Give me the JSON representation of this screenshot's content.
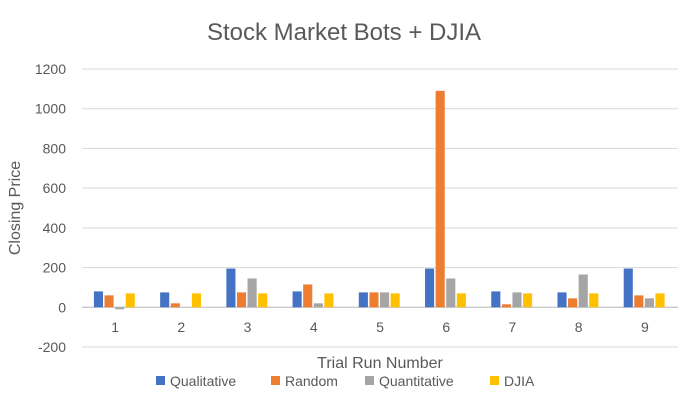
{
  "chart_data": {
    "type": "bar",
    "title": "Stock Market Bots + DJIA",
    "xlabel": "Trial Run Number",
    "ylabel": "Closing Price",
    "categories": [
      "1",
      "2",
      "3",
      "4",
      "5",
      "6",
      "7",
      "8",
      "9"
    ],
    "ylim": [
      -200,
      1200
    ],
    "yticks": [
      "-200",
      "0",
      "200",
      "400",
      "600",
      "800",
      "1000",
      "1200"
    ],
    "ytick_values": [
      -200,
      0,
      200,
      400,
      600,
      800,
      1000,
      1200
    ],
    "grid": true,
    "legend_position": "bottom",
    "series": [
      {
        "name": "Qualitative",
        "color": "#4472c4",
        "values": [
          80,
          75,
          195,
          80,
          75,
          195,
          80,
          75,
          195
        ]
      },
      {
        "name": "Random",
        "color": "#ed7d31",
        "values": [
          60,
          20,
          75,
          115,
          75,
          1090,
          15,
          45,
          60
        ]
      },
      {
        "name": "Quantitative",
        "color": "#a5a5a5",
        "values": [
          -10,
          0,
          145,
          20,
          75,
          145,
          75,
          165,
          45
        ]
      },
      {
        "name": "DJIA",
        "color": "#ffc000",
        "values": [
          70,
          70,
          70,
          70,
          70,
          70,
          70,
          70,
          70
        ]
      }
    ]
  }
}
